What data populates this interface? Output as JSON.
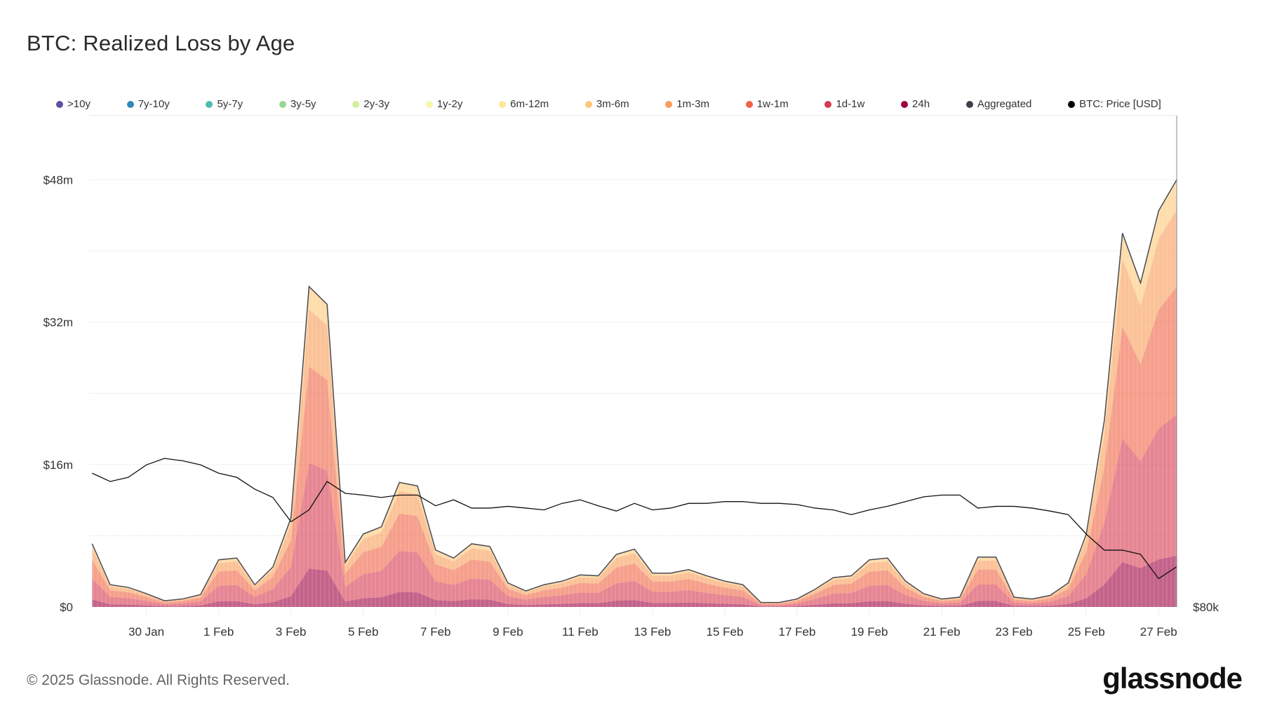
{
  "header": {
    "title": "BTC: Realized Loss by Age"
  },
  "legend": [
    {
      "label": ">10y",
      "color": "#5e4fa2"
    },
    {
      "label": "7y-10y",
      "color": "#3288bd"
    },
    {
      "label": "5y-7y",
      "color": "#4ebbb0"
    },
    {
      "label": "3y-5y",
      "color": "#99d594"
    },
    {
      "label": "2y-3y",
      "color": "#d5ee9b"
    },
    {
      "label": "1y-2y",
      "color": "#f6f8a6"
    },
    {
      "label": "6m-12m",
      "color": "#fee99a"
    },
    {
      "label": "3m-6m",
      "color": "#fdc878"
    },
    {
      "label": "1m-3m",
      "color": "#f99d59"
    },
    {
      "label": "1w-1m",
      "color": "#ef6445"
    },
    {
      "label": "1d-1w",
      "color": "#d63a50"
    },
    {
      "label": "24h",
      "color": "#9e0142"
    },
    {
      "label": "Aggregated",
      "color": "#3d3f4a"
    },
    {
      "label": "BTC: Price [USD]",
      "color": "#000000"
    }
  ],
  "footer": {
    "copyright": "© 2025 Glassnode. All Rights Reserved.",
    "logo": "glassnode"
  },
  "chart_data": {
    "type": "area",
    "stacked": true,
    "title": "BTC: Realized Loss by Age",
    "x_range": [
      "2025-01-28T10:00",
      "2025-02-27T12:00"
    ],
    "x_ticks": [
      {
        "date": "2025-01-30",
        "label": "30 Jan"
      },
      {
        "date": "2025-02-01",
        "label": "1 Feb"
      },
      {
        "date": "2025-02-03",
        "label": "3 Feb"
      },
      {
        "date": "2025-02-05",
        "label": "5 Feb"
      },
      {
        "date": "2025-02-07",
        "label": "7 Feb"
      },
      {
        "date": "2025-02-09",
        "label": "9 Feb"
      },
      {
        "date": "2025-02-11",
        "label": "11 Feb"
      },
      {
        "date": "2025-02-13",
        "label": "13 Feb"
      },
      {
        "date": "2025-02-15",
        "label": "15 Feb"
      },
      {
        "date": "2025-02-17",
        "label": "17 Feb"
      },
      {
        "date": "2025-02-19",
        "label": "19 Feb"
      },
      {
        "date": "2025-02-21",
        "label": "21 Feb"
      },
      {
        "date": "2025-02-23",
        "label": "23 Feb"
      },
      {
        "date": "2025-02-25",
        "label": "25 Feb"
      },
      {
        "date": "2025-02-27",
        "label": "27 Feb"
      }
    ],
    "y_left": {
      "unit": "USD millions",
      "range": [
        0,
        55.2
      ],
      "ticks": [
        {
          "v": 0,
          "label": "$0"
        },
        {
          "v": 16,
          "label": "$16m"
        },
        {
          "v": 32,
          "label": "$32m"
        },
        {
          "v": 48,
          "label": "$48m"
        }
      ],
      "grid_step": 8
    },
    "y_right": {
      "unit": "USD",
      "range": [
        80000,
        163000
      ],
      "ticks": [
        {
          "v": 80000,
          "label": "$80k"
        }
      ],
      "scale": "linear"
    },
    "grid": true,
    "legend_position": "top",
    "x": [
      "2025-01-28T12:00",
      "2025-01-29T00:00",
      "2025-01-29T12:00",
      "2025-01-30T00:00",
      "2025-01-30T12:00",
      "2025-01-31T00:00",
      "2025-01-31T12:00",
      "2025-02-01T00:00",
      "2025-02-01T12:00",
      "2025-02-02T00:00",
      "2025-02-02T12:00",
      "2025-02-03T00:00",
      "2025-02-03T12:00",
      "2025-02-04T00:00",
      "2025-02-04T12:00",
      "2025-02-05T00:00",
      "2025-02-05T12:00",
      "2025-02-06T00:00",
      "2025-02-06T12:00",
      "2025-02-07T00:00",
      "2025-02-07T12:00",
      "2025-02-08T00:00",
      "2025-02-08T12:00",
      "2025-02-09T00:00",
      "2025-02-09T12:00",
      "2025-02-10T00:00",
      "2025-02-10T12:00",
      "2025-02-11T00:00",
      "2025-02-11T12:00",
      "2025-02-12T00:00",
      "2025-02-12T12:00",
      "2025-02-13T00:00",
      "2025-02-13T12:00",
      "2025-02-14T00:00",
      "2025-02-14T12:00",
      "2025-02-15T00:00",
      "2025-02-15T12:00",
      "2025-02-16T00:00",
      "2025-02-16T12:00",
      "2025-02-17T00:00",
      "2025-02-17T12:00",
      "2025-02-18T00:00",
      "2025-02-18T12:00",
      "2025-02-19T00:00",
      "2025-02-19T12:00",
      "2025-02-20T00:00",
      "2025-02-20T12:00",
      "2025-02-21T00:00",
      "2025-02-21T12:00",
      "2025-02-22T00:00",
      "2025-02-22T12:00",
      "2025-02-23T00:00",
      "2025-02-23T12:00",
      "2025-02-24T00:00",
      "2025-02-24T12:00",
      "2025-02-25T00:00",
      "2025-02-25T12:00",
      "2025-02-26T00:00",
      "2025-02-26T12:00",
      "2025-02-27T00:00",
      "2025-02-27T12:00"
    ],
    "aggregated_musd": [
      7.1,
      2.5,
      2.2,
      1.5,
      0.7,
      0.9,
      1.4,
      5.3,
      5.5,
      2.5,
      4.5,
      10,
      36,
      34,
      5,
      8.2,
      9,
      14,
      13.6,
      6.4,
      5.5,
      7.1,
      6.8,
      2.7,
      1.8,
      2.5,
      2.9,
      3.6,
      3.5,
      5.9,
      6.5,
      3.8,
      3.8,
      4.2,
      3.5,
      2.9,
      2.5,
      0.5,
      0.5,
      0.9,
      2.0,
      3.3,
      3.5,
      5.3,
      5.5,
      2.9,
      1.5,
      0.9,
      1.1,
      5.6,
      5.6,
      1.1,
      0.9,
      1.3,
      2.7,
      8.2,
      21,
      42,
      36.4,
      44.5,
      48
    ],
    "stack_composition_pct": [
      {
        "name": "24h",
        "color": "#9e0142",
        "pct": 12
      },
      {
        "name": "1d-1w",
        "color": "#d63a50",
        "pct": 33
      },
      {
        "name": "1w-1m",
        "color": "#ef6445",
        "pct": 30
      },
      {
        "name": "1m-3m",
        "color": "#f99d59",
        "pct": 18
      },
      {
        "name": "3m-6m",
        "color": "#fdc878",
        "pct": 7
      }
    ],
    "btc_price_usd": [
      102600,
      101200,
      101900,
      104000,
      105100,
      104700,
      104000,
      102600,
      101900,
      99900,
      98500,
      94400,
      96400,
      101200,
      99200,
      98900,
      98500,
      98900,
      98900,
      97100,
      98100,
      96700,
      96700,
      97000,
      96700,
      96400,
      97500,
      98100,
      97100,
      96200,
      97500,
      96400,
      96700,
      97500,
      97500,
      97800,
      97800,
      97500,
      97500,
      97300,
      96700,
      96400,
      95600,
      96400,
      97000,
      97800,
      98600,
      98900,
      98900,
      96700,
      97000,
      97000,
      96700,
      96200,
      95600,
      92300,
      89600,
      89600,
      88900,
      84800,
      86800
    ]
  }
}
